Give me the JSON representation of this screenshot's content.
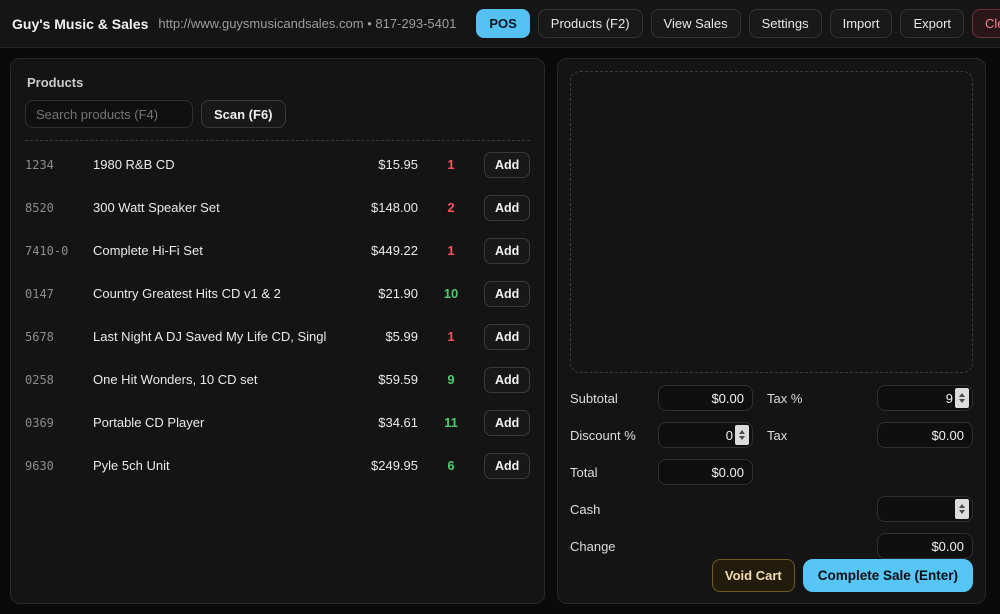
{
  "topbar": {
    "title": "Guy's Music & Sales",
    "subtitle": "http://www.guysmusicandsales.com • 817-293-5401",
    "buttons": [
      {
        "label": "POS",
        "style": "primary"
      },
      {
        "label": "Products (F2)",
        "style": "default"
      },
      {
        "label": "View Sales",
        "style": "default"
      },
      {
        "label": "Settings",
        "style": "default"
      },
      {
        "label": "Import",
        "style": "default"
      },
      {
        "label": "Export",
        "style": "default"
      },
      {
        "label": "Clear Database",
        "style": "danger"
      }
    ]
  },
  "products_panel": {
    "title": "Products",
    "search_placeholder": "Search products (F4)",
    "scan_label": "Scan (F6)",
    "add_label": "Add",
    "items": [
      {
        "code": "1234",
        "name": "1980 R&B CD",
        "price": "$15.95",
        "qty": "1",
        "qty_level": "qty-low"
      },
      {
        "code": "8520",
        "name": "300 Watt Speaker Set",
        "price": "$148.00",
        "qty": "2",
        "qty_level": "qty-low"
      },
      {
        "code": "7410-0",
        "name": "Complete Hi-Fi Set",
        "price": "$449.22",
        "qty": "1",
        "qty_level": "qty-low"
      },
      {
        "code": "0147",
        "name": "Country Greatest Hits CD v1 & 2",
        "price": "$21.90",
        "qty": "10",
        "qty_level": "qty-ok"
      },
      {
        "code": "5678",
        "name": "Last Night A DJ Saved My Life CD, Single",
        "price": "$5.99",
        "qty": "1",
        "qty_level": "qty-low"
      },
      {
        "code": "0258",
        "name": "One Hit Wonders, 10 CD set",
        "price": "$59.59",
        "qty": "9",
        "qty_level": "qty-ok"
      },
      {
        "code": "0369",
        "name": "Portable CD Player",
        "price": "$34.61",
        "qty": "11",
        "qty_level": "qty-ok"
      },
      {
        "code": "9630",
        "name": "Pyle 5ch Unit",
        "price": "$249.95",
        "qty": "6",
        "qty_level": "qty-ok"
      }
    ]
  },
  "cart_panel": {
    "subtotal_label": "Subtotal",
    "subtotal_value": "$0.00",
    "tax_pct_label": "Tax %",
    "tax_pct_value": "9",
    "discount_label": "Discount %",
    "discount_value": "0",
    "tax_label": "Tax",
    "tax_value": "$0.00",
    "total_label": "Total",
    "total_value": "$0.00",
    "cash_label": "Cash",
    "cash_value": "",
    "change_label": "Change",
    "change_value": "$0.00",
    "void_label": "Void Cart",
    "complete_label": "Complete Sale (Enter)"
  },
  "colors": {
    "accent_blue": "#57c5f5",
    "danger_red": "#f0838d",
    "qty_low_red": "#f2565e",
    "qty_ok_green": "#4fca6e",
    "void_gold": "#eeddb0",
    "panel_bg": "#141414",
    "page_bg": "#0a0a0a"
  }
}
